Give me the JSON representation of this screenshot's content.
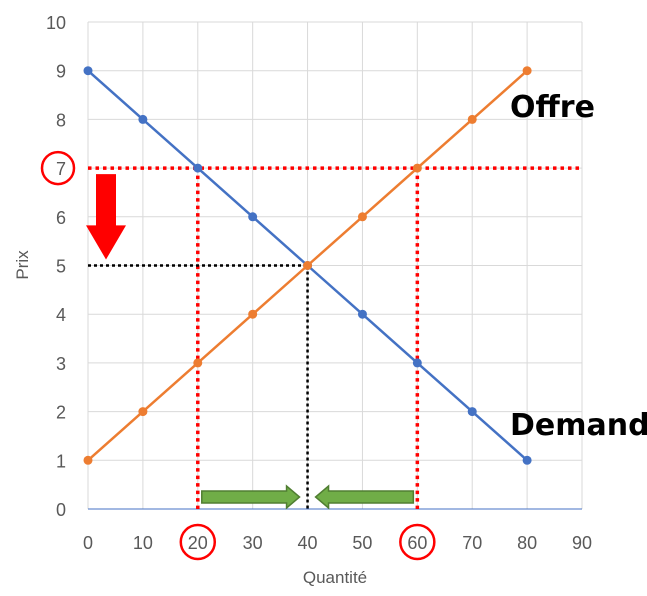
{
  "chart_data": {
    "type": "line",
    "xlabel": "Quantité",
    "ylabel": "Prix",
    "xlim": [
      0,
      90
    ],
    "ylim": [
      0,
      10
    ],
    "x_ticks": [
      "0",
      "10",
      "20",
      "30",
      "40",
      "50",
      "60",
      "70",
      "80",
      "90"
    ],
    "y_ticks": [
      "0",
      "1",
      "2",
      "3",
      "4",
      "5",
      "6",
      "7",
      "8",
      "9",
      "10"
    ],
    "grid": true,
    "series": [
      {
        "name": "Demande",
        "color": "#4472C4",
        "x": [
          0,
          10,
          20,
          30,
          40,
          50,
          60,
          70,
          80
        ],
        "y": [
          9,
          8,
          7,
          6,
          5,
          4,
          3,
          2,
          1
        ]
      },
      {
        "name": "Offre",
        "color": "#ED7D31",
        "x": [
          0,
          10,
          20,
          30,
          40,
          50,
          60,
          70,
          80
        ],
        "y": [
          1,
          2,
          3,
          4,
          5,
          6,
          7,
          8,
          9
        ]
      }
    ],
    "annotations": {
      "price_floor": {
        "price": 7,
        "demand_quantity": 20,
        "supply_quantity": 60,
        "color": "#FF0000"
      },
      "equilibrium": {
        "quantity": 40,
        "price": 5,
        "color": "#000000"
      },
      "circled_ticks": {
        "y": [
          7
        ],
        "x": [
          20,
          60
        ],
        "color": "#FF0000"
      },
      "down_arrow": {
        "color": "#FF0000",
        "meaning": "price-decrease"
      },
      "green_arrows": {
        "color": "#70AD47",
        "border_color": "#507E32",
        "segments": [
          {
            "from": 20,
            "to": 40
          },
          {
            "from": 60,
            "to": 40
          }
        ]
      }
    }
  }
}
